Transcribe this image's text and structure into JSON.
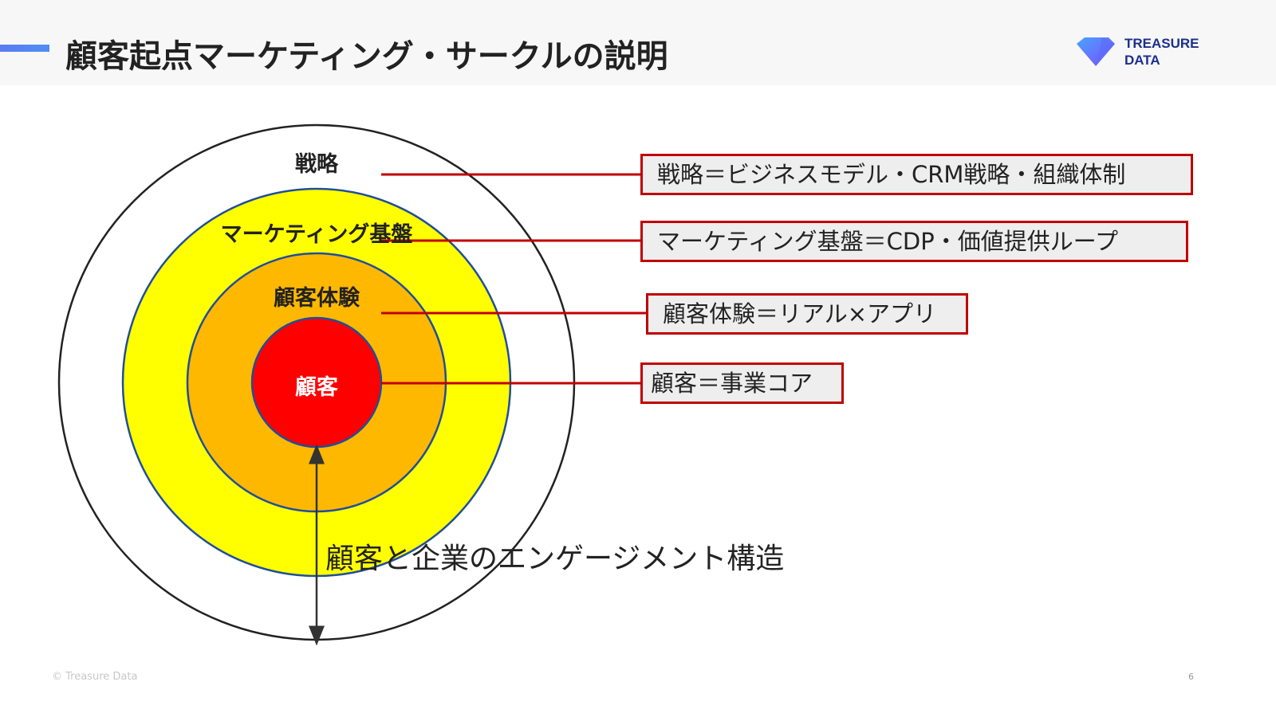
{
  "header": {
    "title": "顧客起点マーケティング・サークルの説明",
    "logo": {
      "line1": "TREASURE",
      "line2": "DATA"
    }
  },
  "diagram": {
    "rings": [
      {
        "label": "戦略",
        "color": "#ffffff"
      },
      {
        "label": "マーケティング基盤",
        "color": "#ffff00"
      },
      {
        "label": "顧客体験",
        "color": "#ffb800"
      },
      {
        "label": "顧客",
        "color": "#ff0000"
      }
    ],
    "ring_border_color": "#1f4e9c",
    "callouts": [
      "戦略＝ビジネスモデル・CRM戦略・組織体制",
      "マーケティング基盤＝CDP・価値提供ループ",
      "顧客体験＝リアル×アプリ",
      "顧客＝事業コア"
    ],
    "callout_border_color": "#c00000",
    "caption": "顧客と企業のエンゲージメント構造"
  },
  "footer": {
    "copyright": "© Treasure Data",
    "page": "6"
  }
}
